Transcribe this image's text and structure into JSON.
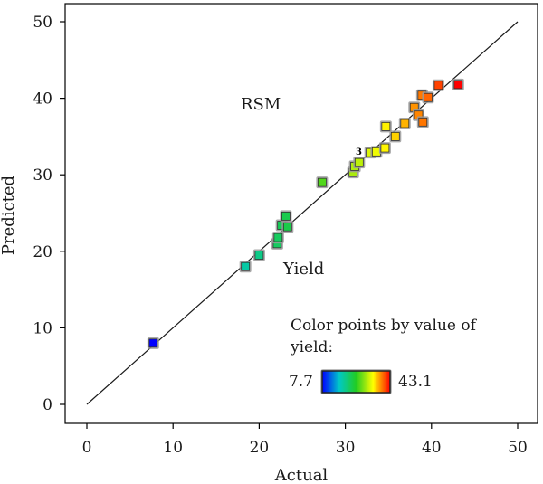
{
  "chart_data": {
    "type": "scatter",
    "xlabel": "Actual",
    "ylabel": "Predicted",
    "xlim": [
      0,
      50
    ],
    "ylim": [
      0,
      50
    ],
    "x_ticks": [
      "0",
      "10",
      "20",
      "30",
      "40",
      "50"
    ],
    "y_ticks": [
      "0",
      "10",
      "20",
      "30",
      "40",
      "50"
    ],
    "grid": false,
    "reference_line": {
      "x": [
        0,
        50
      ],
      "y": [
        0,
        50
      ]
    },
    "annotations": {
      "model": "RSM",
      "response": "Yield",
      "replicate_marker": "3"
    },
    "legend": {
      "title_line1": "Color points by value of",
      "title_line2": "yield:",
      "min_label": "7.7",
      "max_label": "43.1",
      "min": 7.7,
      "max": 43.1,
      "placement": "bottom-right"
    },
    "colorscale": [
      "#0000ff",
      "#00c8c8",
      "#22cc22",
      "#ffff00",
      "#ff0000"
    ],
    "points": [
      {
        "x": 7.7,
        "y": 8.0
      },
      {
        "x": 18.4,
        "y": 18.0
      },
      {
        "x": 20.0,
        "y": 19.5
      },
      {
        "x": 22.1,
        "y": 21.0
      },
      {
        "x": 22.2,
        "y": 21.8
      },
      {
        "x": 22.6,
        "y": 23.4
      },
      {
        "x": 23.3,
        "y": 23.2
      },
      {
        "x": 23.1,
        "y": 24.6
      },
      {
        "x": 27.3,
        "y": 29.0
      },
      {
        "x": 30.9,
        "y": 30.3
      },
      {
        "x": 31.1,
        "y": 31.1
      },
      {
        "x": 31.6,
        "y": 31.6
      },
      {
        "x": 32.9,
        "y": 32.9
      },
      {
        "x": 33.6,
        "y": 33.0
      },
      {
        "x": 34.6,
        "y": 33.5
      },
      {
        "x": 34.7,
        "y": 36.3
      },
      {
        "x": 35.8,
        "y": 35.0
      },
      {
        "x": 36.9,
        "y": 36.7
      },
      {
        "x": 38.0,
        "y": 38.8
      },
      {
        "x": 38.5,
        "y": 37.8
      },
      {
        "x": 39.0,
        "y": 36.9
      },
      {
        "x": 38.9,
        "y": 40.4
      },
      {
        "x": 39.6,
        "y": 40.1
      },
      {
        "x": 40.8,
        "y": 41.7
      },
      {
        "x": 43.1,
        "y": 41.8
      }
    ]
  }
}
